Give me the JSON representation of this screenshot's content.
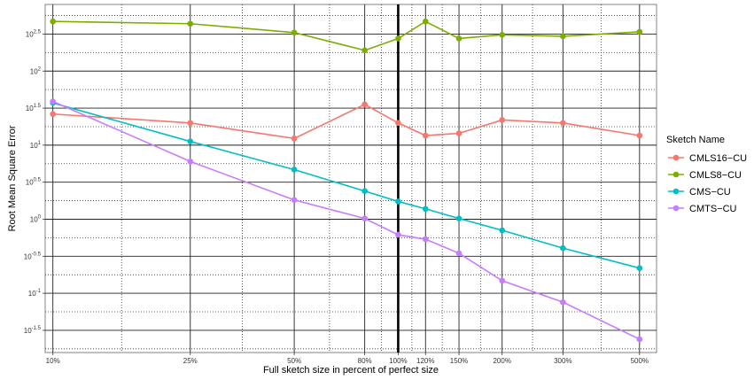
{
  "chart_data": {
    "type": "line",
    "xlabel": "Full sketch size in percent of perfect size",
    "ylabel": "Root Mean Square Error",
    "x_scale": "log",
    "y_scale": "log10",
    "x_ticks": [
      10,
      25,
      50,
      80,
      100,
      120,
      150,
      200,
      300,
      500
    ],
    "x_tick_labels": [
      "10%",
      "25%",
      "50%",
      "80%",
      "100%",
      "120%",
      "150%",
      "200%",
      "300%",
      "500%"
    ],
    "reference_line_x": 100,
    "y_ticks": [
      -1.5,
      -1,
      -0.5,
      0,
      0.5,
      1,
      1.5,
      2,
      2.5
    ],
    "y_tick_labels": [
      {
        "base": "10",
        "exp": "-1.5"
      },
      {
        "base": "10",
        "exp": "-1"
      },
      {
        "base": "10",
        "exp": "-0.5"
      },
      {
        "base": "10",
        "exp": "0"
      },
      {
        "base": "10",
        "exp": "0.5"
      },
      {
        "base": "10",
        "exp": "1"
      },
      {
        "base": "10",
        "exp": "1.5"
      },
      {
        "base": "10",
        "exp": "2"
      },
      {
        "base": "10",
        "exp": "2.5"
      }
    ],
    "xlim": [
      9.5,
      560
    ],
    "ylim_log10": [
      -1.8,
      2.9
    ],
    "grid": true,
    "legend_title": "Sketch Name",
    "legend_position": "right",
    "series": [
      {
        "name": "CMLS16−CU",
        "color": "#F8766D",
        "x": [
          10,
          25,
          50,
          80,
          100,
          120,
          150,
          200,
          300,
          500
        ],
        "y_log10": [
          1.42,
          1.3,
          1.09,
          1.55,
          1.3,
          1.13,
          1.16,
          1.34,
          1.3,
          1.13
        ]
      },
      {
        "name": "CMLS8−CU",
        "color": "#7CAE00",
        "x": [
          10,
          25,
          50,
          80,
          100,
          120,
          150,
          200,
          300,
          500
        ],
        "y_log10": [
          2.67,
          2.64,
          2.52,
          2.28,
          2.44,
          2.67,
          2.44,
          2.49,
          2.47,
          2.53
        ]
      },
      {
        "name": "CMS−CU",
        "color": "#00BFC4",
        "x": [
          10,
          25,
          50,
          80,
          100,
          120,
          150,
          200,
          300,
          500
        ],
        "y_log10": [
          1.57,
          1.05,
          0.67,
          0.38,
          0.24,
          0.14,
          0.01,
          -0.15,
          -0.39,
          -0.66
        ]
      },
      {
        "name": "CMTS−CU",
        "color": "#C77CFF",
        "x": [
          10,
          25,
          50,
          80,
          100,
          120,
          150,
          200,
          300,
          500
        ],
        "y_log10": [
          1.59,
          0.78,
          0.26,
          0.01,
          -0.21,
          -0.27,
          -0.46,
          -0.83,
          -1.12,
          -1.62
        ]
      }
    ]
  }
}
